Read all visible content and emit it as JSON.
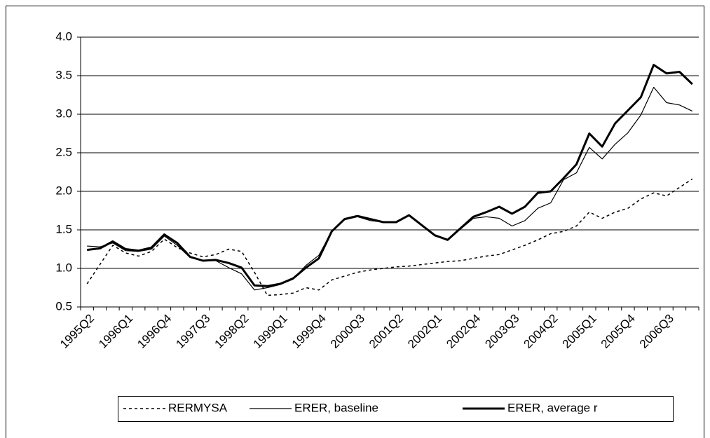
{
  "chart_data": {
    "type": "line",
    "categories": [
      "1995Q2",
      null,
      null,
      "1996Q1",
      null,
      null,
      "1996Q4",
      null,
      null,
      "1997Q3",
      null,
      null,
      "1998Q2",
      null,
      null,
      "1999Q1",
      null,
      null,
      "1999Q4",
      null,
      null,
      "2000Q3",
      null,
      null,
      "2001Q2",
      null,
      null,
      "2002Q1",
      null,
      null,
      "2002Q4",
      null,
      null,
      "2003Q3",
      null,
      null,
      "2004Q2",
      null,
      null,
      "2005Q1",
      null,
      null,
      "2005Q4",
      null,
      null,
      "2006Q3",
      null,
      null
    ],
    "series": [
      {
        "name": "RERMYSA",
        "color": "#000000",
        "line_style": "dotted",
        "line_width": 1.5,
        "values": [
          0.8,
          1.05,
          1.3,
          1.2,
          1.16,
          1.22,
          1.38,
          1.27,
          1.2,
          1.15,
          1.18,
          1.25,
          1.22,
          0.95,
          0.65,
          0.66,
          0.68,
          0.75,
          0.72,
          0.85,
          0.9,
          0.95,
          0.98,
          1.0,
          1.02,
          1.03,
          1.05,
          1.07,
          1.09,
          1.1,
          1.13,
          1.16,
          1.18,
          1.24,
          1.3,
          1.37,
          1.45,
          1.48,
          1.55,
          1.73,
          1.65,
          1.73,
          1.78,
          1.9,
          1.98,
          1.94,
          2.05,
          2.16
        ]
      },
      {
        "name": "ERER, baseline",
        "color": "#000000",
        "line_style": "solid",
        "line_width": 1.2,
        "values": [
          1.29,
          1.28,
          1.33,
          1.23,
          1.22,
          1.25,
          1.42,
          1.3,
          1.14,
          1.1,
          1.1,
          1.01,
          0.93,
          0.72,
          0.75,
          0.79,
          0.86,
          1.04,
          1.17,
          1.48,
          1.63,
          1.67,
          1.62,
          1.6,
          1.6,
          1.68,
          1.56,
          1.42,
          1.37,
          1.51,
          1.65,
          1.67,
          1.65,
          1.55,
          1.62,
          1.78,
          1.85,
          2.15,
          2.24,
          2.57,
          2.42,
          2.61,
          2.76,
          2.99,
          3.35,
          3.15,
          3.12,
          3.04
        ]
      },
      {
        "name": "ERER, average r",
        "color": "#000000",
        "line_style": "solid",
        "line_width": 3,
        "values": [
          1.24,
          1.26,
          1.35,
          1.25,
          1.23,
          1.27,
          1.44,
          1.33,
          1.15,
          1.1,
          1.11,
          1.07,
          1.01,
          0.78,
          0.77,
          0.8,
          0.87,
          1.01,
          1.13,
          1.48,
          1.64,
          1.68,
          1.64,
          1.6,
          1.6,
          1.69,
          1.56,
          1.43,
          1.37,
          1.52,
          1.67,
          1.73,
          1.8,
          1.71,
          1.8,
          1.98,
          2.0,
          2.17,
          2.35,
          2.75,
          2.58,
          2.88,
          3.05,
          3.22,
          3.64,
          3.53,
          3.55,
          3.39
        ]
      }
    ],
    "ylim": [
      0.5,
      4.0
    ],
    "yticks": [
      0.5,
      {
        "value": 1.0,
        "label": "1.0"
      },
      1.5,
      {
        "value": 2.0,
        "label": "2.0"
      },
      2.5,
      {
        "value": 3.0,
        "label": "3.0"
      },
      3.5,
      {
        "value": 4.0,
        "label": "4.0"
      }
    ],
    "grid": true,
    "legend": "bottom"
  }
}
